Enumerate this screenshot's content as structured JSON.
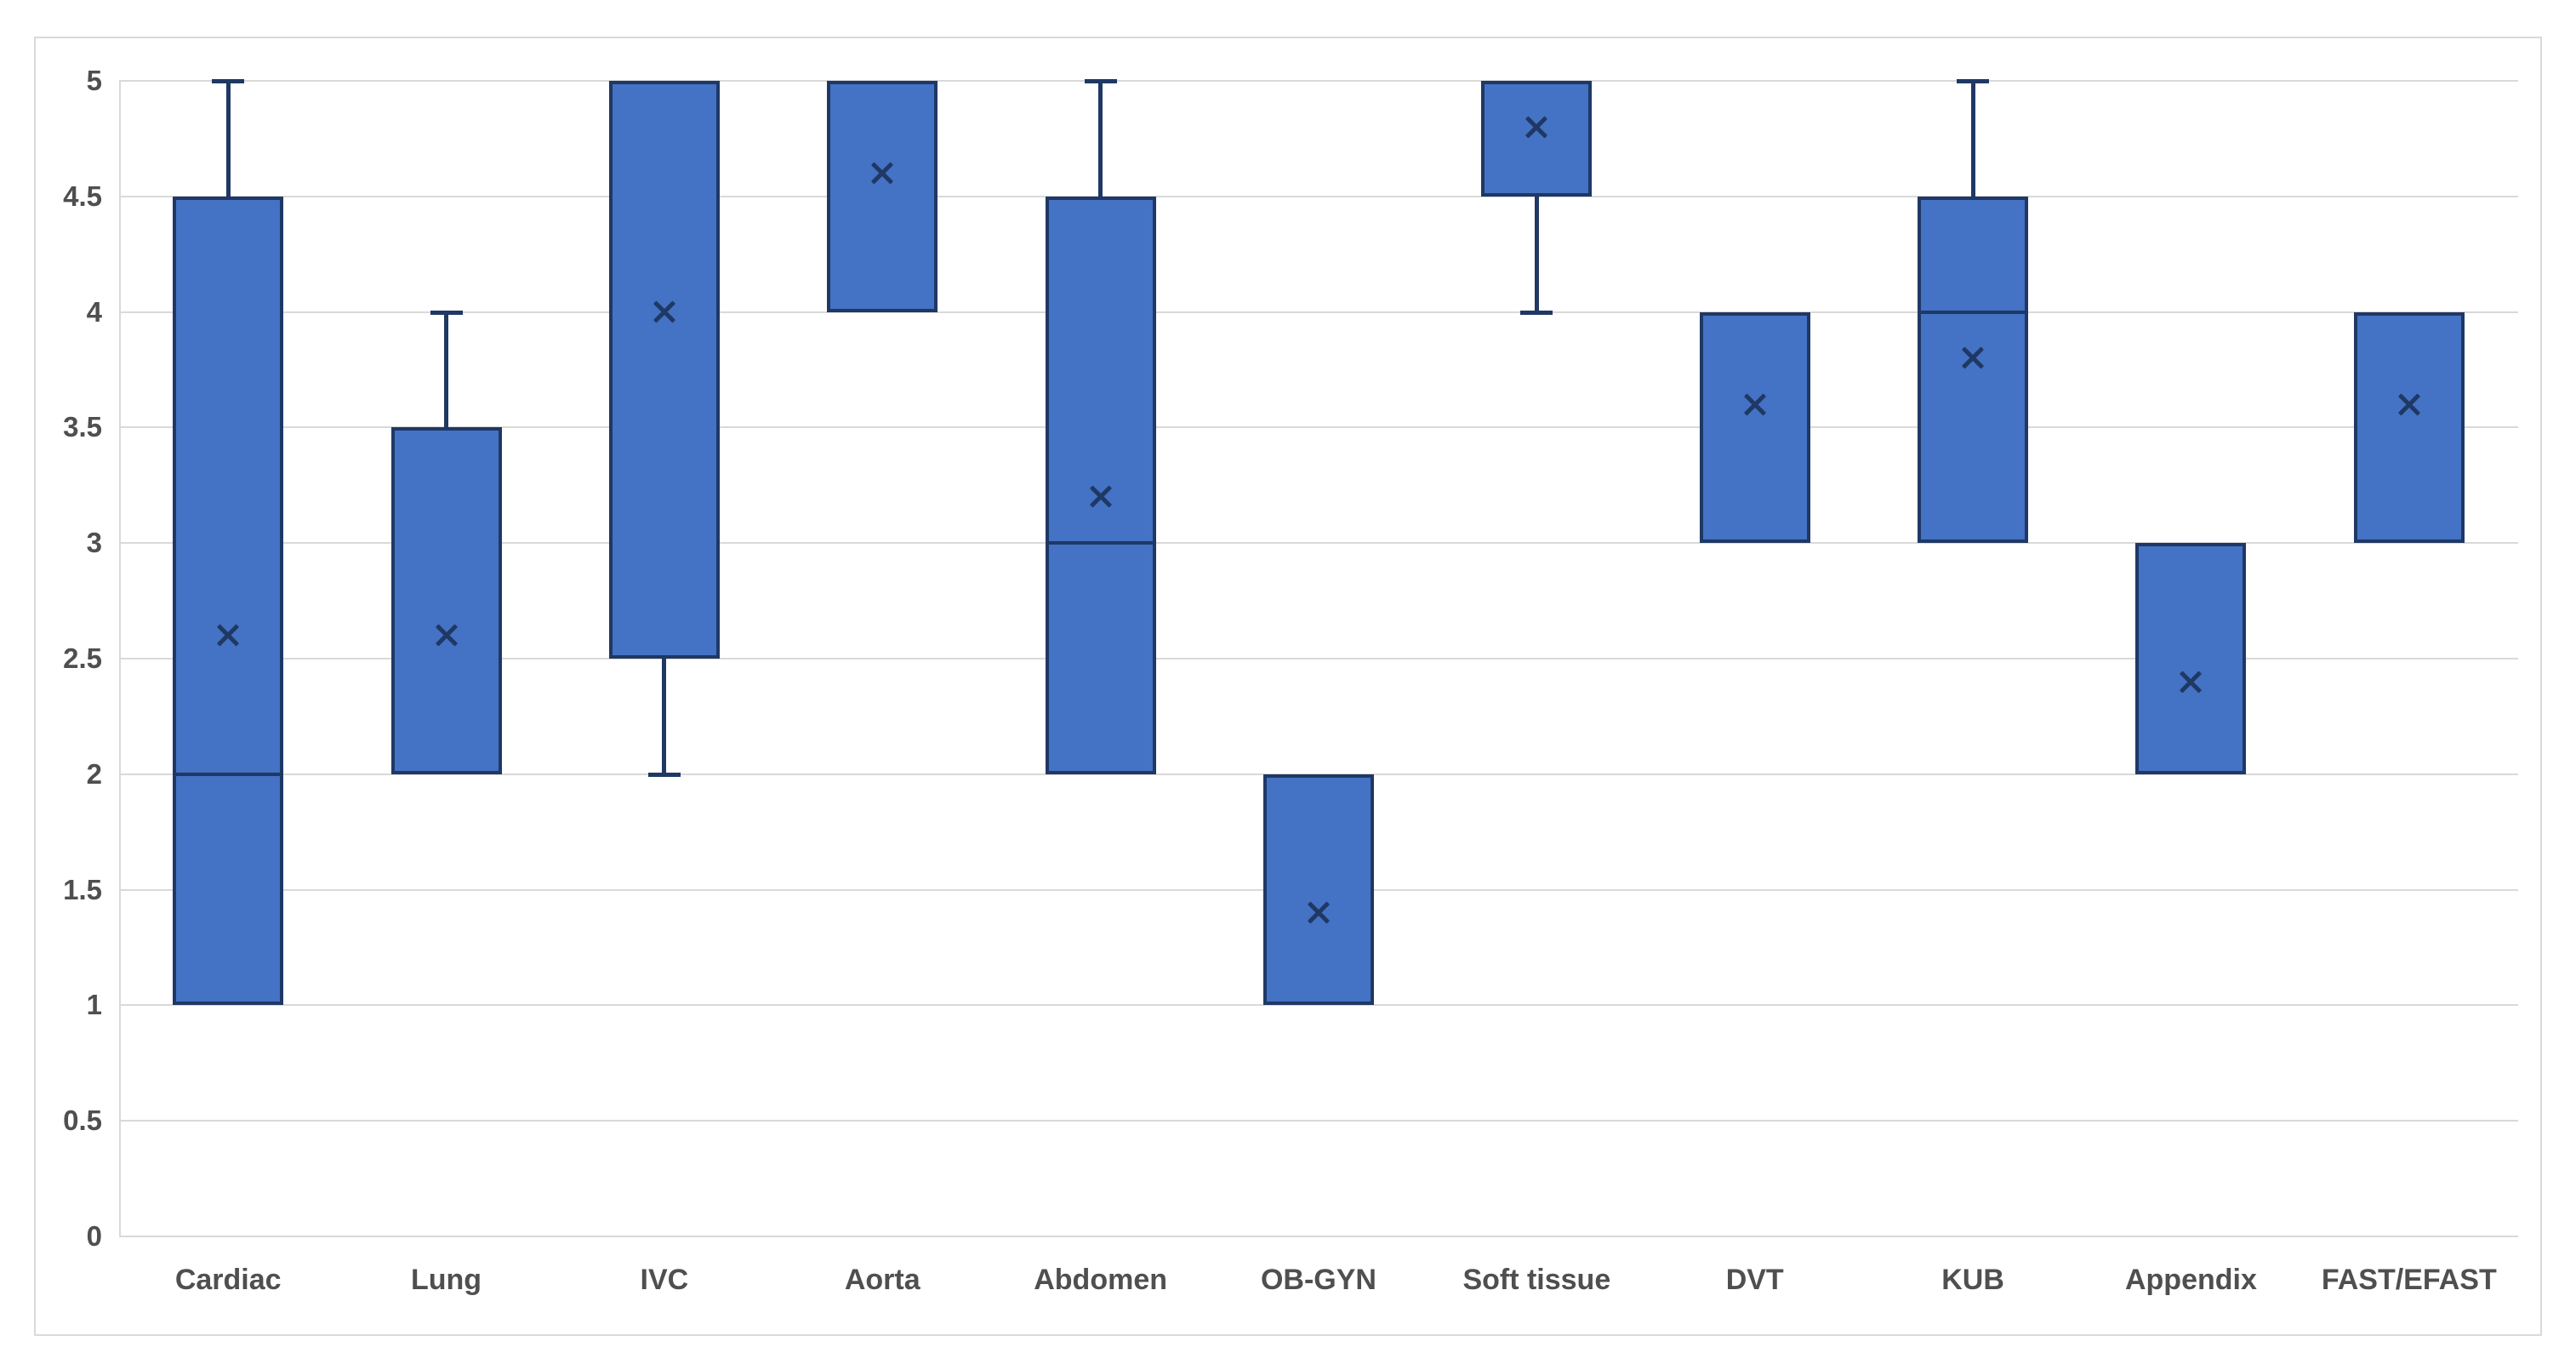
{
  "chart_data": {
    "type": "box",
    "categories": [
      "Cardiac",
      "Lung",
      "IVC",
      "Aorta",
      "Abdomen",
      "OB-GYN",
      "Soft tissue",
      "DVT",
      "KUB",
      "Appendix",
      "FAST/EFAST"
    ],
    "boxes": [
      {
        "category": "Cardiac",
        "q1": 1,
        "median": 2,
        "q3": 4.5,
        "whisker_low": null,
        "whisker_high": 5,
        "mean": 2.6
      },
      {
        "category": "Lung",
        "q1": 2,
        "median": null,
        "q3": 3.5,
        "whisker_low": null,
        "whisker_high": 4,
        "mean": 2.6
      },
      {
        "category": "IVC",
        "q1": 2.5,
        "median": null,
        "q3": 5,
        "whisker_low": 2,
        "whisker_high": null,
        "mean": 4.0
      },
      {
        "category": "Aorta",
        "q1": 4,
        "median": null,
        "q3": 5,
        "whisker_low": null,
        "whisker_high": null,
        "mean": 4.6
      },
      {
        "category": "Abdomen",
        "q1": 2,
        "median": 3,
        "q3": 4.5,
        "whisker_low": null,
        "whisker_high": 5,
        "mean": 3.2
      },
      {
        "category": "OB-GYN",
        "q1": 1,
        "median": null,
        "q3": 2,
        "whisker_low": null,
        "whisker_high": null,
        "mean": 1.4
      },
      {
        "category": "Soft tissue",
        "q1": 4.5,
        "median": null,
        "q3": 5,
        "whisker_low": 4,
        "whisker_high": null,
        "mean": 4.8
      },
      {
        "category": "DVT",
        "q1": 3,
        "median": null,
        "q3": 4,
        "whisker_low": null,
        "whisker_high": null,
        "mean": 3.6
      },
      {
        "category": "KUB",
        "q1": 3,
        "median": 4,
        "q3": 4.5,
        "whisker_low": null,
        "whisker_high": 5,
        "mean": 3.8
      },
      {
        "category": "Appendix",
        "q1": 2,
        "median": null,
        "q3": 3,
        "whisker_low": null,
        "whisker_high": null,
        "mean": 2.4
      },
      {
        "category": "FAST/EFAST",
        "q1": 3,
        "median": null,
        "q3": 4,
        "whisker_low": null,
        "whisker_high": null,
        "mean": 3.6
      }
    ],
    "ylim": [
      0,
      5
    ],
    "yticks": [
      0,
      0.5,
      1,
      1.5,
      2,
      2.5,
      3,
      3.5,
      4,
      4.5,
      5
    ],
    "xlabel": "",
    "ylabel": "",
    "grid": true,
    "legend": "none",
    "colors": {
      "box_fill": "#4472C4",
      "box_border": "#1F3864",
      "gridline": "#D9D9D9",
      "chart_border": "#D9D9D9",
      "axis_text": "#4F4F4F",
      "background": "#FFFFFF"
    }
  }
}
